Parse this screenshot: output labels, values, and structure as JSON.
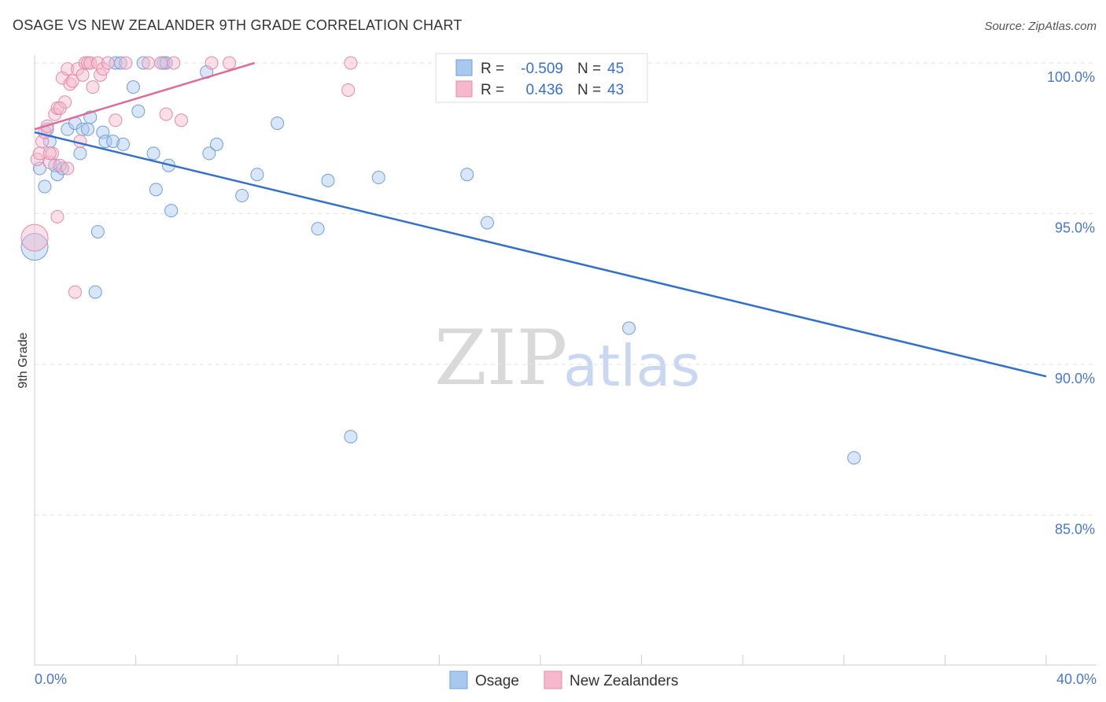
{
  "chart_data": {
    "type": "scatter",
    "title": "OSAGE VS NEW ZEALANDER 9TH GRADE CORRELATION CHART",
    "source": "Source: ZipAtlas.com",
    "ylabel": "9th Grade",
    "xlim": [
      0,
      40
    ],
    "ylim": [
      80,
      100.5
    ],
    "x_tick_labels": [
      "0.0%",
      "40.0%"
    ],
    "y_ticks": [
      {
        "value": 100,
        "label": "100.0%"
      },
      {
        "value": 95,
        "label": "95.0%"
      },
      {
        "value": 90,
        "label": "90.0%"
      },
      {
        "value": 85,
        "label": "85.0%"
      }
    ],
    "watermark": {
      "zip": "ZIP",
      "atlas": "atlas"
    },
    "legend": {
      "r_label": "R =",
      "n_label": "N =",
      "rows": [
        {
          "r": "-0.509",
          "n": "45",
          "color": "#a8c8f0"
        },
        {
          "r": "0.436",
          "n": "43",
          "color": "#f5b8cc"
        }
      ]
    },
    "series": [
      {
        "name": "Osage",
        "color": "#a8c8f0",
        "stroke": "#6f9fd8",
        "trend_color": "#3370cc",
        "trend": [
          [
            0,
            97.7
          ],
          [
            40,
            89.6
          ]
        ],
        "points": [
          [
            0.0,
            93.9
          ],
          [
            0.2,
            96.5
          ],
          [
            0.4,
            95.9
          ],
          [
            0.5,
            97.8
          ],
          [
            0.6,
            97.4
          ],
          [
            0.8,
            96.6
          ],
          [
            0.9,
            96.3
          ],
          [
            1.1,
            96.5
          ],
          [
            1.3,
            97.8
          ],
          [
            1.6,
            98.0
          ],
          [
            1.8,
            97.0
          ],
          [
            1.9,
            97.8
          ],
          [
            2.1,
            97.8
          ],
          [
            2.2,
            98.2
          ],
          [
            2.5,
            94.4
          ],
          [
            2.4,
            92.4
          ],
          [
            2.7,
            97.7
          ],
          [
            2.8,
            97.4
          ],
          [
            3.1,
            97.4
          ],
          [
            3.2,
            100.0
          ],
          [
            3.4,
            100.0
          ],
          [
            3.5,
            97.3
          ],
          [
            3.9,
            99.2
          ],
          [
            4.1,
            98.4
          ],
          [
            4.3,
            100.0
          ],
          [
            4.7,
            97.0
          ],
          [
            4.8,
            95.8
          ],
          [
            5.1,
            100.0
          ],
          [
            5.2,
            100.0
          ],
          [
            5.3,
            96.6
          ],
          [
            5.4,
            95.1
          ],
          [
            6.8,
            99.7
          ],
          [
            6.9,
            97.0
          ],
          [
            7.2,
            97.3
          ],
          [
            8.2,
            95.6
          ],
          [
            8.8,
            96.3
          ],
          [
            9.6,
            98.0
          ],
          [
            11.2,
            94.5
          ],
          [
            11.6,
            96.1
          ],
          [
            12.5,
            87.6
          ],
          [
            13.6,
            96.2
          ],
          [
            17.1,
            96.3
          ],
          [
            17.9,
            94.7
          ],
          [
            23.5,
            91.2
          ],
          [
            32.4,
            86.9
          ]
        ]
      },
      {
        "name": "New Zealanders",
        "color": "#f5b8cc",
        "stroke": "#e58aa8",
        "trend_color": "#dd6d96",
        "trend": [
          [
            0,
            97.8
          ],
          [
            8.7,
            100.0
          ]
        ],
        "points": [
          [
            0.0,
            94.2
          ],
          [
            0.1,
            96.8
          ],
          [
            0.2,
            97.0
          ],
          [
            0.3,
            97.4
          ],
          [
            0.4,
            97.7
          ],
          [
            0.5,
            97.9
          ],
          [
            0.6,
            96.7
          ],
          [
            0.7,
            97.0
          ],
          [
            0.8,
            98.3
          ],
          [
            0.9,
            98.5
          ],
          [
            1.0,
            96.6
          ],
          [
            1.1,
            99.5
          ],
          [
            1.2,
            98.7
          ],
          [
            1.3,
            99.8
          ],
          [
            1.4,
            99.3
          ],
          [
            1.5,
            99.4
          ],
          [
            1.6,
            92.4
          ],
          [
            1.7,
            99.8
          ],
          [
            1.8,
            97.4
          ],
          [
            1.9,
            99.6
          ],
          [
            2.0,
            100.0
          ],
          [
            2.1,
            100.0
          ],
          [
            2.2,
            100.0
          ],
          [
            2.3,
            99.2
          ],
          [
            2.5,
            100.0
          ],
          [
            2.6,
            99.6
          ],
          [
            2.7,
            99.8
          ],
          [
            2.9,
            100.0
          ],
          [
            3.2,
            98.1
          ],
          [
            3.6,
            100.0
          ],
          [
            4.5,
            100.0
          ],
          [
            5.0,
            100.0
          ],
          [
            5.2,
            98.3
          ],
          [
            5.5,
            100.0
          ],
          [
            5.8,
            98.1
          ],
          [
            7.0,
            100.0
          ],
          [
            7.7,
            100.0
          ],
          [
            12.5,
            100.0
          ],
          [
            12.4,
            99.1
          ],
          [
            0.9,
            94.9
          ],
          [
            1.0,
            98.5
          ],
          [
            1.3,
            96.5
          ],
          [
            0.6,
            97.0
          ]
        ]
      }
    ]
  }
}
